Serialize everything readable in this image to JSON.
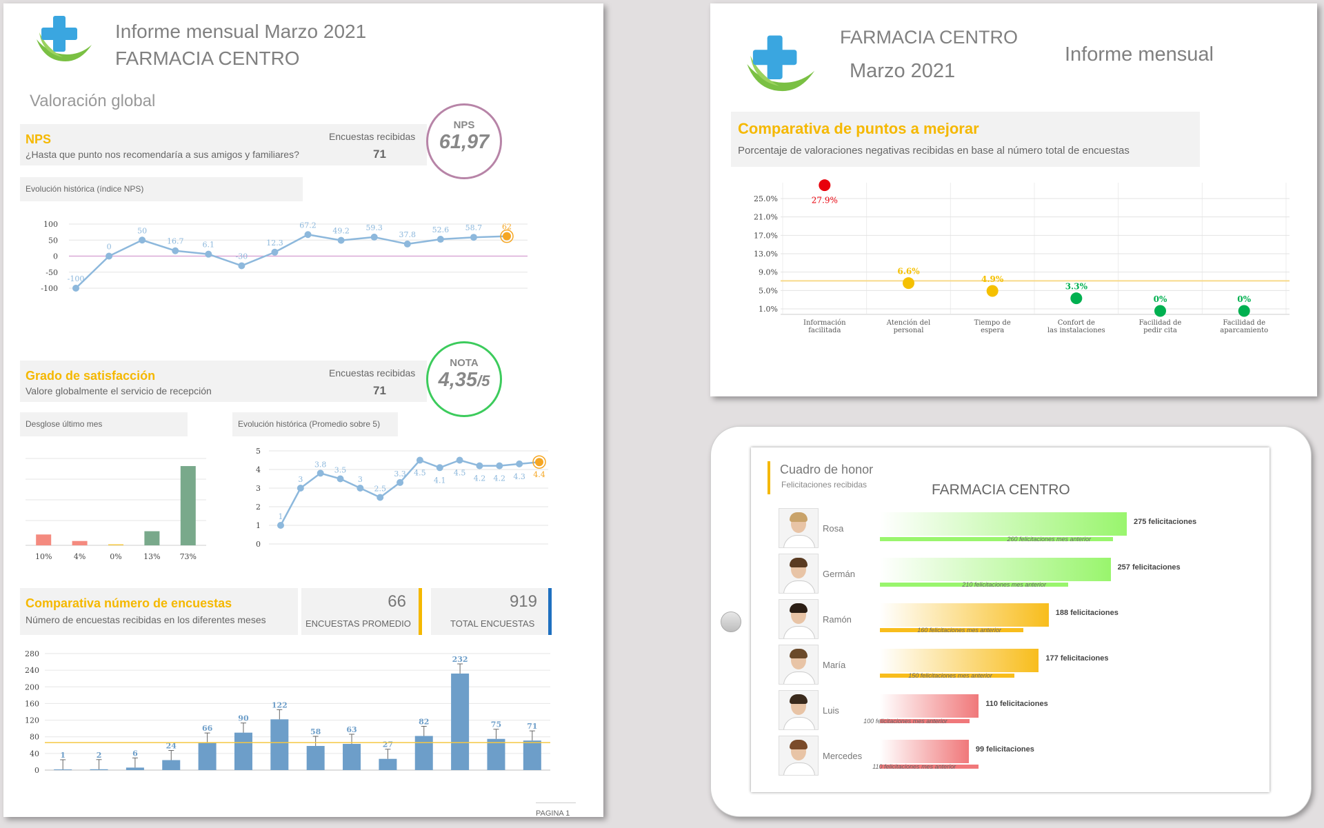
{
  "report": {
    "title": "Informe mensual Marzo 2021",
    "pharmacy": "FARMACIA CENTRO",
    "section": "Valoración global",
    "page_label": "PAGINA 1"
  },
  "nps": {
    "title": "NPS",
    "question": "¿Hasta que punto nos recomendaría a sus amigos y familiares?",
    "surveys_label": "Encuestas recibidas",
    "surveys_value": "71",
    "badge_label": "NPS",
    "badge_value": "61,97",
    "history_label": "Evolución  histórica (índice NPS)"
  },
  "satisfaction": {
    "title": "Grado de satisfacción",
    "question": "Valore globalmente el servicio de recepción",
    "surveys_label": "Encuestas recibidas",
    "surveys_value": "71",
    "badge_label": "NOTA",
    "badge_value": "4,35",
    "badge_suffix": "/5",
    "breakdown_label": "Desglose último mes",
    "history_label": "Evolución histórica (Promedio sobre 5)"
  },
  "surveys_compare": {
    "title": "Comparativa número de encuestas",
    "subtitle": "Número de encuestas recibidas en los diferentes meses",
    "avg_value": "66",
    "avg_label": "ENCUESTAS PROMEDIO",
    "total_value": "919",
    "total_label": "TOTAL ENCUESTAS"
  },
  "panel2": {
    "pharmacy": "FARMACIA CENTRO",
    "month": "Marzo 2021",
    "report": "Informe mensual",
    "title": "Comparativa de puntos a mejorar",
    "subtitle": "Porcentaje de valoraciones negativas recibidas en base al número total de encuestas"
  },
  "honor": {
    "title": "Cuadro de honor",
    "subtitle": "Felicitaciones recibidas",
    "pharmacy": "FARMACIA CENTRO",
    "rows": [
      {
        "name": "Rosa",
        "label": "275 felicitaciones",
        "sub": "260 felicitaciones mes anterior",
        "value": 275,
        "prev": 260,
        "color": "#99f56d"
      },
      {
        "name": "Germán",
        "label": "257 felicitaciones",
        "sub": "210 felicitaciones mes anterior",
        "value": 257,
        "prev": 210,
        "color": "#99f56d"
      },
      {
        "name": "Ramón",
        "label": "188 felicitaciones",
        "sub": "160 felicitaciones mes anterior",
        "value": 188,
        "prev": 160,
        "color": "#f8bd1c"
      },
      {
        "name": "María",
        "label": "177 felicitaciones",
        "sub": "150 felicitaciones mes anterior",
        "value": 177,
        "prev": 150,
        "color": "#f8bd1c"
      },
      {
        "name": "Luis",
        "label": "110 felicitaciones",
        "sub": "100 felicitaciones mes anterior",
        "value": 110,
        "prev": 100,
        "color": "#f0787a"
      },
      {
        "name": "Mercedes",
        "label": "99 felicitaciones",
        "sub": "110 felicitaciones mes anterior",
        "value": 99,
        "prev": 110,
        "color": "#f0787a"
      }
    ]
  },
  "chart_data": [
    {
      "id": "nps-history",
      "type": "line",
      "values": [
        -100,
        0,
        50,
        16.7,
        6.1,
        -30,
        12.3,
        67.2,
        49.2,
        59.3,
        37.8,
        52.6,
        58.7,
        62
      ],
      "value_labels": [
        "-100",
        "0",
        "50",
        "16.7",
        "6.1",
        "-30",
        "12.3",
        "67.2",
        "49.2",
        "59.3",
        "37.8",
        "52.6",
        "58.7",
        "62"
      ],
      "yticks": [
        "100",
        "50",
        "0",
        "-50",
        "-100"
      ],
      "ylim": [
        -100,
        100
      ],
      "color": "#8db8dc",
      "highlight_color": "#f5a623"
    },
    {
      "id": "satisfaction-breakdown",
      "type": "bar",
      "categories": [
        "10%",
        "4%",
        "0%",
        "13%",
        "73%"
      ],
      "values": [
        10,
        4,
        0,
        13,
        73
      ],
      "colors": [
        "#f48a7f",
        "#f48a7f",
        "#f5c842",
        "#79a98b",
        "#79a98b"
      ]
    },
    {
      "id": "satisfaction-history",
      "type": "line",
      "values": [
        1,
        3,
        3.8,
        3.5,
        3,
        2.5,
        3.3,
        4.5,
        4.1,
        4.5,
        4.2,
        4.2,
        4.3,
        4.4
      ],
      "value_labels": [
        "1",
        "3",
        "3.8",
        "3.5",
        "3",
        "2.5",
        "3.3",
        "4.5",
        "4.1",
        "4.5",
        "4.2",
        "4.2",
        "4.3",
        "4.4"
      ],
      "yticks": [
        "5",
        "4",
        "3",
        "2",
        "1",
        "0"
      ],
      "ylim": [
        0,
        5
      ],
      "color": "#8db8dc",
      "highlight_color": "#f5a623"
    },
    {
      "id": "surveys-per-month",
      "type": "bar",
      "values": [
        1,
        2,
        6,
        24,
        66,
        90,
        122,
        58,
        63,
        27,
        82,
        232,
        75,
        71
      ],
      "value_labels": [
        "1",
        "2",
        "6",
        "24",
        "66",
        "90",
        "122",
        "58",
        "63",
        "27",
        "82",
        "232",
        "75",
        "71"
      ],
      "yticks": [
        "280",
        "240",
        "200",
        "160",
        "120",
        "80",
        "40",
        "0"
      ],
      "ylim": [
        0,
        280
      ],
      "average": 66,
      "color": "#6d9ec9"
    },
    {
      "id": "improvement-points",
      "type": "scatter",
      "categories": [
        "Información facilitada",
        "Atención del personal",
        "Tiempo de espera",
        "Confort de las instalaciones",
        "Facilidad de pedir cita",
        "Facilidad de aparcamiento"
      ],
      "values": [
        27.9,
        6.6,
        4.9,
        3.3,
        0,
        0
      ],
      "value_labels": [
        "27.9%",
        "6.6%",
        "4.9%",
        "3.3%",
        "0%",
        "0%"
      ],
      "colors": [
        "#e8000b",
        "#f5c000",
        "#f5c000",
        "#00b050",
        "#00b050",
        "#00b050"
      ],
      "yticks": [
        "25.0%",
        "21.0%",
        "17.0%",
        "13.0%",
        "9.0%",
        "5.0%",
        "1.0%"
      ],
      "ylim": [
        1,
        25
      ],
      "average": 7.1
    }
  ]
}
